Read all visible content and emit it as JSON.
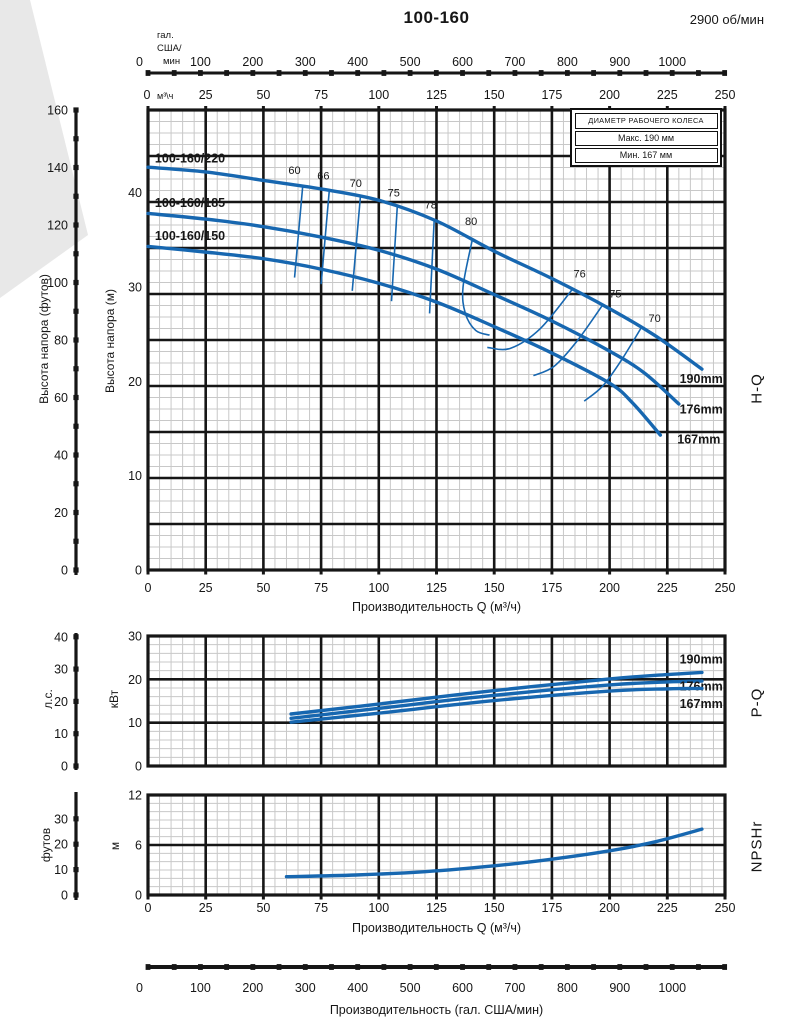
{
  "page": {
    "title": "100-160",
    "rpm": "2900 об/мин"
  },
  "legend": {
    "title": "ДИАМЕТР РАБОЧЕГО КОЛЕСА",
    "max": "Макс. 190 мм",
    "min": "Мин. 167 мм"
  },
  "colors": {
    "curve": "#1767b0",
    "grid_minor": "#c8c8c8",
    "grid_major": "#161616",
    "text": "#161616",
    "eff_label": "#3a3a3a",
    "corner": "#e8e8e8"
  },
  "top_axis_gal": {
    "unit_lines": [
      "гал.",
      "США/",
      "мин"
    ],
    "tick_labels": [
      "0",
      "100",
      "200",
      "300",
      "400",
      "500",
      "600",
      "700",
      "800",
      "900",
      "1000"
    ],
    "tick_values": [
      0,
      100,
      200,
      300,
      400,
      500,
      600,
      700,
      800,
      900,
      1000
    ],
    "minor_step": 50,
    "max_value": 1100
  },
  "bottom_axis_gal": {
    "tick_labels": [
      "0",
      "100",
      "200",
      "300",
      "400",
      "500",
      "600",
      "700",
      "800",
      "900",
      "1000"
    ],
    "tick_values": [
      0,
      100,
      200,
      300,
      400,
      500,
      600,
      700,
      800,
      900,
      1000
    ],
    "minor_step": 50,
    "max_value": 1100,
    "title": "Производительность (гал. США/мин)"
  },
  "chart_data": [
    {
      "id": "hq",
      "type": "line",
      "side_label": "H-Q",
      "x_axis": {
        "min": 0,
        "max": 250,
        "major": 25,
        "minor": 5,
        "unit_top": "м³\\ч",
        "tick_labels": [
          "0",
          "25",
          "50",
          "75",
          "100",
          "125",
          "150",
          "175",
          "200",
          "225",
          "250"
        ],
        "tick_values": [
          0,
          25,
          50,
          75,
          100,
          125,
          150,
          175,
          200,
          225,
          250
        ],
        "title": "Производительность Q (м³/ч)"
      },
      "y_inner": {
        "unit": "Высота напора (м)",
        "min": 0,
        "max": 40,
        "tick_labels": [
          "0",
          "10",
          "20",
          "30",
          "40"
        ],
        "tick_values": [
          0,
          10,
          20,
          30,
          40
        ]
      },
      "y_outer": {
        "unit": "Высота напора (футов)",
        "min": 0,
        "max": 160,
        "tick_labels": [
          "0",
          "20",
          "40",
          "60",
          "80",
          "100",
          "120",
          "140",
          "160"
        ],
        "tick_values": [
          0,
          20,
          40,
          60,
          80,
          100,
          120,
          140,
          160
        ],
        "dot_step": 10
      },
      "series": [
        {
          "name": "100-160/220",
          "diameter": "190mm",
          "points": [
            [
              0,
              42.7
            ],
            [
              25,
              42.2
            ],
            [
              50,
              41.3
            ],
            [
              75,
              40.4
            ],
            [
              100,
              39.2
            ],
            [
              125,
              37.0
            ],
            [
              150,
              33.8
            ],
            [
              175,
              30.9
            ],
            [
              200,
              27.7
            ],
            [
              220,
              24.8
            ],
            [
              240,
              21.3
            ]
          ],
          "name_label_at": [
            3,
            43.2
          ],
          "dia_label_at": [
            249,
            19.8
          ]
        },
        {
          "name": "100-160/185",
          "diameter": "176mm",
          "points": [
            [
              0,
              37.8
            ],
            [
              25,
              37.2
            ],
            [
              50,
              36.4
            ],
            [
              75,
              35.3
            ],
            [
              100,
              33.9
            ],
            [
              125,
              31.9
            ],
            [
              150,
              29.2
            ],
            [
              175,
              26.4
            ],
            [
              200,
              23.2
            ],
            [
              215,
              20.9
            ],
            [
              230,
              17.6
            ]
          ],
          "name_label_at": [
            3,
            38.5
          ],
          "dia_label_at": [
            249,
            16.6
          ]
        },
        {
          "name": "100-160/150",
          "diameter": "167mm",
          "points": [
            [
              0,
              34.3
            ],
            [
              25,
              33.7
            ],
            [
              50,
              33.0
            ],
            [
              75,
              31.9
            ],
            [
              100,
              30.4
            ],
            [
              125,
              28.4
            ],
            [
              150,
              25.8
            ],
            [
              175,
              23.0
            ],
            [
              200,
              19.8
            ],
            [
              210,
              17.7
            ],
            [
              222,
              14.3
            ]
          ],
          "name_label_at": [
            3,
            35.0
          ],
          "dia_label_at": [
            248,
            13.4
          ]
        }
      ],
      "efficiency": [
        {
          "label": "60",
          "points": [
            [
              67,
              40.6
            ],
            [
              63.5,
              31.0
            ]
          ],
          "label_at": [
            63.5,
            42.0
          ]
        },
        {
          "label": "66",
          "points": [
            [
              78.5,
              40.1
            ],
            [
              75,
              30.3
            ]
          ],
          "label_at": [
            76,
            41.4
          ]
        },
        {
          "label": "70",
          "points": [
            [
              92,
              39.5
            ],
            [
              88.5,
              29.6
            ]
          ],
          "label_at": [
            90,
            40.6
          ]
        },
        {
          "label": "75",
          "points": [
            [
              108,
              38.5
            ],
            [
              105.5,
              28.5
            ]
          ],
          "label_at": [
            106.5,
            39.6
          ]
        },
        {
          "label": "78",
          "points": [
            [
              124,
              37.1
            ],
            [
              122,
              27.2
            ]
          ],
          "label_at": [
            122.5,
            38.3
          ]
        },
        {
          "label": "80",
          "points": [
            [
              140.5,
              35.0
            ],
            [
              136.5,
              30.0
            ],
            [
              137.5,
              27.2
            ],
            [
              142,
              25.4
            ],
            [
              148,
              24.9
            ]
          ],
          "label_at": [
            140,
            36.6
          ]
        },
        {
          "label": "76",
          "points": [
            [
              184,
              29.8
            ],
            [
              170,
              25.6
            ],
            [
              157,
              23.5
            ],
            [
              147,
              23.6
            ]
          ],
          "label_at": [
            187,
            31.0
          ]
        },
        {
          "label": "75",
          "points": [
            [
              197,
              28.1
            ],
            [
              186,
              24.3
            ],
            [
              176,
              21.6
            ],
            [
              167,
              20.6
            ]
          ],
          "label_at": [
            202.5,
            28.9
          ]
        },
        {
          "label": "70",
          "points": [
            [
              214,
              25.8
            ],
            [
              205,
              22.2
            ],
            [
              197,
              19.5
            ],
            [
              189,
              17.9
            ]
          ],
          "label_at": [
            219.5,
            26.3
          ]
        }
      ]
    },
    {
      "id": "pq",
      "type": "line",
      "side_label": "P-Q",
      "x_axis": {
        "min": 0,
        "max": 250,
        "major": 25,
        "minor": 5
      },
      "y_inner": {
        "unit": "кВт",
        "min": 0,
        "max": 30,
        "tick_labels": [
          "0",
          "10",
          "20",
          "30"
        ],
        "tick_values": [
          0,
          10,
          20,
          30
        ]
      },
      "y_outer": {
        "unit": "л.с.",
        "min": 0,
        "max": 40,
        "tick_labels": [
          "0",
          "10",
          "20",
          "30",
          "40"
        ],
        "tick_values": [
          0,
          10,
          20,
          30,
          40
        ],
        "dot_step": 10
      },
      "series": [
        {
          "name": "190mm",
          "points": [
            [
              62,
              12.0
            ],
            [
              100,
              14.3
            ],
            [
              150,
              17.4
            ],
            [
              200,
              20.1
            ],
            [
              225,
              21.1
            ],
            [
              240,
              21.6
            ]
          ],
          "label_at": [
            249,
            23.6
          ]
        },
        {
          "name": "176mm",
          "points": [
            [
              62,
              11.0
            ],
            [
              100,
              13.3
            ],
            [
              150,
              16.3
            ],
            [
              200,
              18.7
            ],
            [
              225,
              19.4
            ],
            [
              240,
              19.6
            ]
          ],
          "label_at": [
            249,
            17.4
          ]
        },
        {
          "name": "167mm",
          "points": [
            [
              62,
              10.1
            ],
            [
              100,
              12.2
            ],
            [
              150,
              15.1
            ],
            [
              200,
              17.3
            ],
            [
              225,
              17.8
            ],
            [
              240,
              17.9
            ]
          ],
          "label_at": [
            249,
            13.4
          ]
        }
      ]
    },
    {
      "id": "np",
      "type": "line",
      "side_label": "NPSHr",
      "x_axis": {
        "min": 0,
        "max": 250,
        "major": 25,
        "minor": 5,
        "tick_labels": [
          "0",
          "25",
          "50",
          "75",
          "100",
          "125",
          "150",
          "175",
          "200",
          "225",
          "250"
        ],
        "tick_values": [
          0,
          25,
          50,
          75,
          100,
          125,
          150,
          175,
          200,
          225,
          250
        ],
        "title": "Производительность Q (м³/ч)"
      },
      "y_inner": {
        "unit": "м",
        "min": 0,
        "max": 12,
        "tick_labels": [
          "0",
          "6",
          "12"
        ],
        "tick_values": [
          0,
          6,
          12
        ]
      },
      "y_outer": {
        "unit": "футов",
        "min": 0,
        "max": 30,
        "tick_labels": [
          "0",
          "10",
          "20",
          "30"
        ],
        "tick_values": [
          0,
          10,
          20,
          30
        ],
        "dot_step": 10
      },
      "series": [
        {
          "name": "NPSHr",
          "points": [
            [
              60,
              2.2
            ],
            [
              90,
              2.4
            ],
            [
              120,
              2.8
            ],
            [
              150,
              3.5
            ],
            [
              175,
              4.3
            ],
            [
              200,
              5.3
            ],
            [
              220,
              6.4
            ],
            [
              240,
              7.9
            ]
          ]
        }
      ]
    }
  ]
}
